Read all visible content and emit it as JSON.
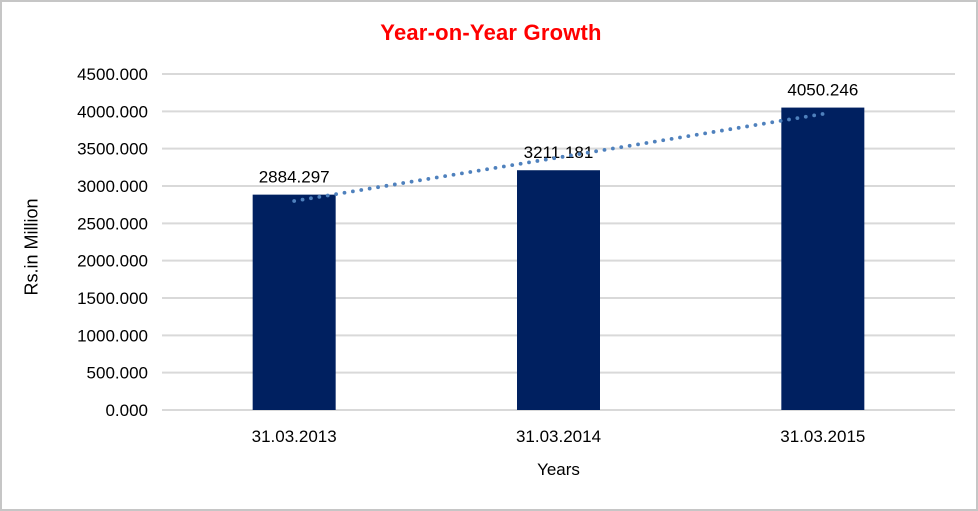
{
  "chart_data": {
    "type": "bar",
    "title": "Year-on-Year Growth",
    "title_color": "#ff0000",
    "xlabel": "Years",
    "ylabel": "Rs.in Million",
    "categories": [
      "31.03.2013",
      "31.03.2014",
      "31.03.2015"
    ],
    "values": [
      2884.297,
      3211.181,
      4050.246
    ],
    "data_labels": [
      "2884.297",
      "3211.181",
      "4050.246"
    ],
    "ylim": [
      0,
      4500
    ],
    "ytick_step": 500,
    "ytick_labels": [
      "0.000",
      "500.000",
      "1000.000",
      "1500.000",
      "2000.000",
      "2500.000",
      "3000.000",
      "3500.000",
      "4000.000",
      "4500.000"
    ],
    "grid": true,
    "gridline_color": "#d9d9d9",
    "bar_color": "#002060",
    "legend_position": "none",
    "trendline": {
      "type": "linear",
      "style": "dotted",
      "color": "#4f81bd"
    }
  }
}
